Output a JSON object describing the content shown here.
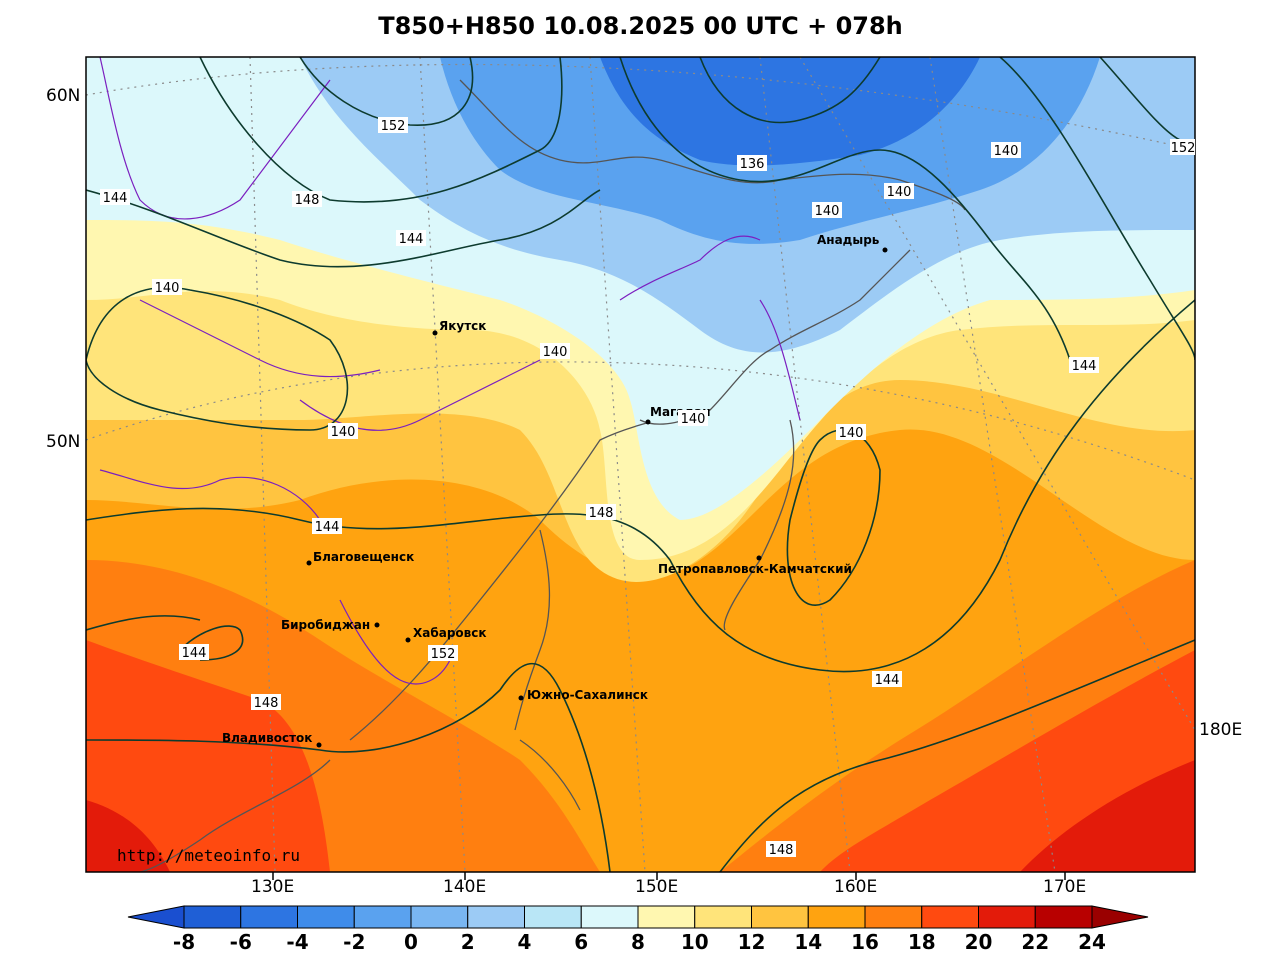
{
  "title": "T850+H850 10.08.2025 00 UTC + 078h",
  "credit": "http://meteoinfo.ru",
  "lat_labels": [
    "60N",
    "50N"
  ],
  "lon_labels": [
    "130E",
    "140E",
    "150E",
    "160E",
    "170E",
    "180E"
  ],
  "cities": [
    {
      "name": "Якутск"
    },
    {
      "name": "Магадан"
    },
    {
      "name": "Анадырь"
    },
    {
      "name": "Благовещенск"
    },
    {
      "name": "Биробиджан"
    },
    {
      "name": "Хабаровск"
    },
    {
      "name": "Южно-Сахалинск"
    },
    {
      "name": "Владивосток"
    },
    {
      "name": "Петропавловск-Камчатский"
    }
  ],
  "contour_labels": [
    "152",
    "148",
    "144",
    "144",
    "140",
    "140",
    "140",
    "136",
    "140",
    "140",
    "140",
    "140",
    "144",
    "144",
    "148",
    "144",
    "152",
    "148",
    "144",
    "148",
    "140",
    "152"
  ],
  "colorbar": {
    "ticks": [
      "-8",
      "-6",
      "-4",
      "-2",
      "0",
      "2",
      "4",
      "6",
      "8",
      "10",
      "12",
      "14",
      "16",
      "18",
      "20",
      "22",
      "24"
    ],
    "colors": [
      "#1f5fd6",
      "#2d75e2",
      "#3f8cea",
      "#5aa2ef",
      "#79b6f2",
      "#9ccbf5",
      "#b9e6f6",
      "#dcf8fb",
      "#fff7b0",
      "#ffe47a",
      "#ffc440",
      "#ffa310",
      "#ff7f10",
      "#ff4a10",
      "#e31b0a",
      "#b80000"
    ],
    "low_color": "#1a4fd0",
    "high_color": "#9a0000"
  },
  "colors": {
    "contour": "#0d3b2e",
    "border": "#7b1fbf",
    "coast": "#555555",
    "grid": "#8a8a8a"
  }
}
